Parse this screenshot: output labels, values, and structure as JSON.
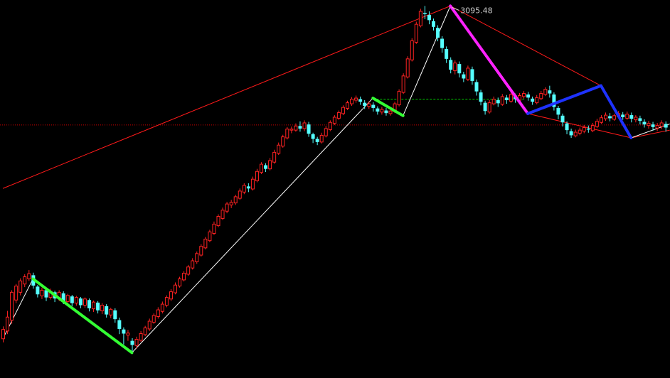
{
  "chart_data": {
    "type": "candlestick",
    "ylim": [
      2375,
      3107
    ],
    "x_count": 155,
    "grid": false,
    "colors": {
      "background": "#000000",
      "up_candle": "#ff2222",
      "down_candle": "#55ffff",
      "channel_line": "#ff1a1a",
      "zigzag_thin": "#ffffff",
      "reference_line": "#00d000",
      "baseline": "#cc0000",
      "leg_green": "#33ff33",
      "leg_magenta": "#ff22ff",
      "leg_blue": "#1e32ff",
      "annotation_text": "#cccccc"
    },
    "annotations": [
      {
        "label": "3095.48",
        "x": 104,
        "y": 3095.48
      }
    ],
    "reference_level": 2915,
    "baseline_level": 2865,
    "thin_zigzag": [
      {
        "x": 0,
        "y": 2451
      },
      {
        "x": 7,
        "y": 2567
      },
      {
        "x": 30,
        "y": 2424
      },
      {
        "x": 86,
        "y": 2917
      },
      {
        "x": 93,
        "y": 2883
      },
      {
        "x": 104,
        "y": 3095.48
      },
      {
        "x": 122,
        "y": 2887
      },
      {
        "x": 139,
        "y": 2941
      },
      {
        "x": 146,
        "y": 2840
      },
      {
        "x": 155,
        "y": 2867
      }
    ],
    "channel_lines": [
      [
        {
          "x": 0,
          "y": 2742
        },
        {
          "x": 104,
          "y": 3095.48
        }
      ],
      [
        {
          "x": 104,
          "y": 3095.48
        },
        {
          "x": 139,
          "y": 2941
        }
      ],
      [
        {
          "x": 104,
          "y": 3095.48
        },
        {
          "x": 122,
          "y": 2887
        }
      ],
      [
        {
          "x": 122,
          "y": 2887
        },
        {
          "x": 146,
          "y": 2840
        }
      ],
      [
        {
          "x": 146,
          "y": 2840
        },
        {
          "x": 155,
          "y": 2855
        }
      ]
    ],
    "thick_legs": [
      {
        "color": "leg_green",
        "from": {
          "x": 7,
          "y": 2567
        },
        "to": {
          "x": 30,
          "y": 2424
        }
      },
      {
        "color": "leg_green",
        "from": {
          "x": 86,
          "y": 2917
        },
        "to": {
          "x": 93,
          "y": 2883
        }
      },
      {
        "color": "leg_magenta",
        "from": {
          "x": 104,
          "y": 3095.48
        },
        "to": {
          "x": 122,
          "y": 2887
        }
      },
      {
        "color": "leg_blue",
        "from": {
          "x": 122,
          "y": 2887
        },
        "to": {
          "x": 139,
          "y": 2941
        }
      },
      {
        "color": "leg_blue",
        "from": {
          "x": 139,
          "y": 2941
        },
        "to": {
          "x": 146,
          "y": 2840
        }
      }
    ],
    "candles": [
      [
        2451,
        2469,
        2444,
        2475
      ],
      [
        2466,
        2493,
        2460,
        2505
      ],
      [
        2487,
        2541,
        2480,
        2545
      ],
      [
        2526,
        2553,
        2520,
        2557
      ],
      [
        2541,
        2563,
        2535,
        2568
      ],
      [
        2557,
        2571,
        2551,
        2576
      ],
      [
        2567,
        2577,
        2563,
        2584
      ],
      [
        2574,
        2554,
        2548,
        2579
      ],
      [
        2552,
        2537,
        2531,
        2555
      ],
      [
        2534,
        2545,
        2528,
        2550
      ],
      [
        2545,
        2531,
        2524,
        2548
      ],
      [
        2531,
        2543,
        2527,
        2548
      ],
      [
        2541,
        2529,
        2522,
        2544
      ],
      [
        2529,
        2541,
        2524,
        2545
      ],
      [
        2539,
        2524,
        2518,
        2543
      ],
      [
        2523,
        2535,
        2518,
        2538
      ],
      [
        2533,
        2520,
        2514,
        2536
      ],
      [
        2520,
        2531,
        2515,
        2534
      ],
      [
        2529,
        2516,
        2510,
        2532
      ],
      [
        2516,
        2528,
        2511,
        2531
      ],
      [
        2526,
        2510,
        2504,
        2529
      ],
      [
        2509,
        2522,
        2503,
        2525
      ],
      [
        2521,
        2506,
        2500,
        2524
      ],
      [
        2505,
        2516,
        2499,
        2520
      ],
      [
        2514,
        2498,
        2492,
        2518
      ],
      [
        2497,
        2508,
        2491,
        2511
      ],
      [
        2506,
        2489,
        2482,
        2510
      ],
      [
        2487,
        2470,
        2460,
        2492
      ],
      [
        2469,
        2461,
        2440,
        2473
      ],
      [
        2458,
        2462,
        2447,
        2468
      ],
      [
        2447,
        2439,
        2424,
        2452
      ],
      [
        2438,
        2450,
        2432,
        2455
      ],
      [
        2448,
        2461,
        2445,
        2466
      ],
      [
        2459,
        2472,
        2456,
        2476
      ],
      [
        2470,
        2485,
        2466,
        2490
      ],
      [
        2483,
        2496,
        2480,
        2500
      ],
      [
        2494,
        2507,
        2490,
        2512
      ],
      [
        2504,
        2518,
        2500,
        2523
      ],
      [
        2516,
        2531,
        2512,
        2535
      ],
      [
        2528,
        2542,
        2524,
        2547
      ],
      [
        2540,
        2555,
        2537,
        2560
      ],
      [
        2553,
        2567,
        2550,
        2571
      ],
      [
        2565,
        2578,
        2562,
        2582
      ],
      [
        2576,
        2590,
        2573,
        2594
      ],
      [
        2588,
        2602,
        2585,
        2607
      ],
      [
        2600,
        2616,
        2596,
        2620
      ],
      [
        2613,
        2630,
        2610,
        2634
      ],
      [
        2627,
        2644,
        2624,
        2648
      ],
      [
        2641,
        2658,
        2638,
        2662
      ],
      [
        2655,
        2673,
        2652,
        2678
      ],
      [
        2670,
        2688,
        2667,
        2692
      ],
      [
        2684,
        2700,
        2681,
        2705
      ],
      [
        2698,
        2712,
        2694,
        2716
      ],
      [
        2710,
        2715,
        2704,
        2720
      ],
      [
        2714,
        2726,
        2710,
        2730
      ],
      [
        2723,
        2737,
        2720,
        2742
      ],
      [
        2735,
        2748,
        2731,
        2752
      ],
      [
        2746,
        2742,
        2735,
        2752
      ],
      [
        2741,
        2760,
        2738,
        2765
      ],
      [
        2757,
        2775,
        2754,
        2780
      ],
      [
        2773,
        2789,
        2770,
        2793
      ],
      [
        2787,
        2780,
        2774,
        2791
      ],
      [
        2780,
        2796,
        2777,
        2801
      ],
      [
        2793,
        2812,
        2790,
        2817
      ],
      [
        2810,
        2826,
        2807,
        2831
      ],
      [
        2824,
        2842,
        2821,
        2846
      ],
      [
        2840,
        2857,
        2837,
        2861
      ],
      [
        2855,
        2857,
        2849,
        2862
      ],
      [
        2855,
        2863,
        2852,
        2868
      ],
      [
        2863,
        2858,
        2852,
        2872
      ],
      [
        2858,
        2869,
        2853,
        2874
      ],
      [
        2866,
        2848,
        2842,
        2871
      ],
      [
        2847,
        2838,
        2830,
        2850
      ],
      [
        2838,
        2832,
        2826,
        2842
      ],
      [
        2832,
        2845,
        2829,
        2850
      ],
      [
        2844,
        2858,
        2841,
        2863
      ],
      [
        2856,
        2870,
        2853,
        2874
      ],
      [
        2868,
        2880,
        2865,
        2884
      ],
      [
        2878,
        2889,
        2875,
        2893
      ],
      [
        2887,
        2899,
        2884,
        2903
      ],
      [
        2897,
        2908,
        2894,
        2912
      ],
      [
        2906,
        2915,
        2902,
        2919
      ],
      [
        2913,
        2917,
        2908,
        2922
      ],
      [
        2915,
        2910,
        2904,
        2920
      ],
      [
        2908,
        2902,
        2896,
        2913
      ],
      [
        2901,
        2906,
        2896,
        2911
      ],
      [
        2904,
        2898,
        2891,
        2909
      ],
      [
        2897,
        2891,
        2885,
        2901
      ],
      [
        2890,
        2895,
        2885,
        2900
      ],
      [
        2893,
        2888,
        2883,
        2898
      ],
      [
        2887,
        2892,
        2883,
        2896
      ],
      [
        2891,
        2906,
        2888,
        2910
      ],
      [
        2904,
        2930,
        2901,
        2934
      ],
      [
        2928,
        2960,
        2925,
        2965
      ],
      [
        2958,
        2993,
        2955,
        2998
      ],
      [
        2991,
        3028,
        2988,
        3033
      ],
      [
        3025,
        3060,
        3022,
        3065
      ],
      [
        3057,
        3085,
        3054,
        3090
      ],
      [
        3082,
        3080,
        3070,
        3095.48
      ],
      [
        3078,
        3068,
        3060,
        3085
      ],
      [
        3066,
        3055,
        3048,
        3071
      ],
      [
        3053,
        3034,
        3027,
        3058
      ],
      [
        3032,
        3014,
        3005,
        3037
      ],
      [
        3012,
        2993,
        2985,
        3017
      ],
      [
        2991,
        2972,
        2965,
        2996
      ],
      [
        2970,
        2985,
        2963,
        2990
      ],
      [
        2983,
        2965,
        2957,
        2988
      ],
      [
        2963,
        2955,
        2948,
        2968
      ],
      [
        2953,
        2975,
        2950,
        2980
      ],
      [
        2973,
        2950,
        2943,
        2978
      ],
      [
        2948,
        2930,
        2922,
        2953
      ],
      [
        2928,
        2910,
        2903,
        2933
      ],
      [
        2908,
        2892,
        2885,
        2912
      ],
      [
        2890,
        2908,
        2887,
        2913
      ],
      [
        2906,
        2915,
        2903,
        2920
      ],
      [
        2913,
        2907,
        2900,
        2918
      ],
      [
        2905,
        2920,
        2902,
        2925
      ],
      [
        2918,
        2913,
        2906,
        2923
      ],
      [
        2911,
        2924,
        2908,
        2929
      ],
      [
        2922,
        2915,
        2908,
        2926
      ],
      [
        2913,
        2922,
        2910,
        2927
      ],
      [
        2920,
        2926,
        2916,
        2931
      ],
      [
        2924,
        2918,
        2912,
        2929
      ],
      [
        2916,
        2910,
        2904,
        2920
      ],
      [
        2908,
        2918,
        2905,
        2923
      ],
      [
        2916,
        2926,
        2913,
        2931
      ],
      [
        2924,
        2934,
        2921,
        2938
      ],
      [
        2932,
        2926,
        2918,
        2941
      ],
      [
        2924,
        2900,
        2893,
        2928
      ],
      [
        2898,
        2885,
        2876,
        2902
      ],
      [
        2883,
        2870,
        2862,
        2887
      ],
      [
        2868,
        2855,
        2847,
        2872
      ],
      [
        2853,
        2845,
        2840,
        2858
      ],
      [
        2844,
        2851,
        2841,
        2856
      ],
      [
        2849,
        2855,
        2845,
        2860
      ],
      [
        2853,
        2860,
        2849,
        2865
      ],
      [
        2858,
        2856,
        2850,
        2864
      ],
      [
        2854,
        2864,
        2851,
        2869
      ],
      [
        2862,
        2872,
        2859,
        2877
      ],
      [
        2870,
        2879,
        2867,
        2884
      ],
      [
        2877,
        2884,
        2873,
        2889
      ],
      [
        2882,
        2878,
        2872,
        2888
      ],
      [
        2876,
        2883,
        2873,
        2887
      ],
      [
        2881,
        2887,
        2878,
        2892
      ],
      [
        2885,
        2880,
        2875,
        2890
      ],
      [
        2878,
        2886,
        2875,
        2891
      ],
      [
        2884,
        2877,
        2870,
        2889
      ],
      [
        2875,
        2880,
        2870,
        2884
      ],
      [
        2878,
        2873,
        2866,
        2883
      ],
      [
        2871,
        2866,
        2860,
        2876
      ],
      [
        2864,
        2868,
        2858,
        2873
      ],
      [
        2866,
        2861,
        2854,
        2871
      ],
      [
        2859,
        2864,
        2853,
        2869
      ],
      [
        2862,
        2869,
        2857,
        2874
      ],
      [
        2867,
        2860,
        2852,
        2872
      ]
    ]
  }
}
